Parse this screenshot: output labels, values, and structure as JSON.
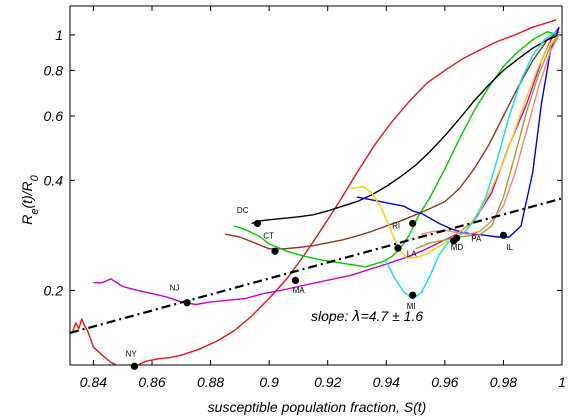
{
  "chart_data": {
    "type": "line",
    "xlabel": "susceptible population fraction, S(t)",
    "ylabel_parts": [
      "R",
      "e",
      "(t)/R",
      "0"
    ],
    "y_scale": "log",
    "xlim": [
      0.832,
      1.0
    ],
    "ylim": [
      0.125,
      1.2
    ],
    "x_ticks": [
      0.84,
      0.86,
      0.88,
      0.9,
      0.92,
      0.94,
      0.96,
      0.98,
      1.0
    ],
    "x_tick_labels": [
      "0.84",
      "0.86",
      "0.88",
      "0.9",
      "0.92",
      "0.94",
      "0.96",
      "0.98",
      "1"
    ],
    "y_ticks": [
      0.2,
      0.4,
      0.6,
      0.8,
      1.0
    ],
    "y_tick_labels": [
      "0.2",
      "0.4",
      "0.6",
      "0.8",
      "1"
    ],
    "annotation": {
      "prefix": "slope: ",
      "symbol": "λ",
      "value": "=4.7 ± 1.6"
    },
    "fit_line": {
      "x": [
        0.832,
        1.0
      ],
      "y": [
        0.153,
        0.357
      ],
      "color": "#000000"
    },
    "series": [
      {
        "color": "#e8141b",
        "x": [
          0.833,
          0.834,
          0.835,
          0.836,
          0.837,
          0.838,
          0.84,
          0.843,
          0.846,
          0.849,
          0.852,
          0.855,
          0.858,
          0.862,
          0.866,
          0.87,
          0.876,
          0.882,
          0.888,
          0.894,
          0.9,
          0.906,
          0.912,
          0.918,
          0.924,
          0.93,
          0.936,
          0.942,
          0.948,
          0.954,
          0.96,
          0.966,
          0.972,
          0.978,
          0.984,
          0.99,
          0.995,
          0.998
        ],
        "y": [
          0.155,
          0.163,
          0.157,
          0.167,
          0.16,
          0.155,
          0.14,
          0.133,
          0.127,
          0.124,
          0.124,
          0.125,
          0.128,
          0.13,
          0.131,
          0.133,
          0.138,
          0.145,
          0.155,
          0.17,
          0.19,
          0.215,
          0.25,
          0.295,
          0.35,
          0.42,
          0.5,
          0.58,
          0.66,
          0.74,
          0.8,
          0.86,
          0.91,
          0.96,
          1.0,
          1.05,
          1.08,
          1.1
        ]
      },
      {
        "color": "#cc00cc",
        "x": [
          0.84,
          0.843,
          0.846,
          0.85,
          0.855,
          0.86,
          0.865,
          0.87,
          0.875,
          0.88,
          0.886,
          0.892,
          0.898,
          0.904,
          0.91,
          0.916,
          0.922,
          0.928,
          0.934,
          0.94,
          0.946,
          0.952,
          0.958,
          0.964,
          0.97,
          0.976,
          0.982,
          0.988,
          0.993,
          0.997,
          0.999
        ],
        "y": [
          0.21,
          0.21,
          0.215,
          0.205,
          0.2,
          0.196,
          0.192,
          0.186,
          0.183,
          0.186,
          0.188,
          0.19,
          0.196,
          0.2,
          0.205,
          0.21,
          0.215,
          0.22,
          0.228,
          0.236,
          0.245,
          0.256,
          0.27,
          0.285,
          0.31,
          0.37,
          0.5,
          0.65,
          0.85,
          1.0,
          1.05
        ]
      },
      {
        "color": "#8b3a1a",
        "x": [
          0.885,
          0.89,
          0.895,
          0.9,
          0.905,
          0.91,
          0.915,
          0.92,
          0.925,
          0.93,
          0.935,
          0.94,
          0.945,
          0.95,
          0.955,
          0.96,
          0.965,
          0.97,
          0.975,
          0.98,
          0.985,
          0.99,
          0.995,
          0.999
        ],
        "y": [
          0.285,
          0.28,
          0.27,
          0.26,
          0.26,
          0.262,
          0.265,
          0.27,
          0.275,
          0.282,
          0.29,
          0.3,
          0.31,
          0.322,
          0.335,
          0.35,
          0.38,
          0.43,
          0.5,
          0.6,
          0.72,
          0.85,
          0.97,
          1.02
        ]
      },
      {
        "color": "#00cc00",
        "x": [
          0.888,
          0.891,
          0.894,
          0.897,
          0.9,
          0.903,
          0.906,
          0.909,
          0.912,
          0.915,
          0.918,
          0.921,
          0.924,
          0.927,
          0.93,
          0.933,
          0.936,
          0.939,
          0.942,
          0.945,
          0.948,
          0.951,
          0.955,
          0.96,
          0.965,
          0.97,
          0.975,
          0.98,
          0.985,
          0.99,
          0.995,
          0.999
        ],
        "y": [
          0.3,
          0.295,
          0.288,
          0.28,
          0.268,
          0.262,
          0.256,
          0.252,
          0.248,
          0.245,
          0.242,
          0.24,
          0.238,
          0.236,
          0.234,
          0.232,
          0.236,
          0.24,
          0.248,
          0.262,
          0.285,
          0.32,
          0.36,
          0.43,
          0.52,
          0.62,
          0.72,
          0.82,
          0.9,
          0.97,
          1.02,
          1.0
        ]
      },
      {
        "color": "#000000",
        "x": [
          0.894,
          0.897,
          0.9,
          0.905,
          0.91,
          0.915,
          0.92,
          0.925,
          0.93,
          0.935,
          0.94,
          0.945,
          0.95,
          0.955,
          0.96,
          0.965,
          0.97,
          0.975,
          0.98,
          0.985,
          0.99,
          0.995,
          0.999
        ],
        "y": [
          0.305,
          0.31,
          0.312,
          0.315,
          0.318,
          0.322,
          0.33,
          0.34,
          0.35,
          0.365,
          0.385,
          0.41,
          0.44,
          0.48,
          0.53,
          0.59,
          0.66,
          0.73,
          0.8,
          0.86,
          0.92,
          0.97,
          1.0
        ]
      },
      {
        "color": "#0000dd",
        "x": [
          0.93,
          0.934,
          0.938,
          0.942,
          0.946,
          0.949,
          0.952,
          0.955,
          0.958,
          0.962,
          0.966,
          0.97,
          0.974,
          0.978,
          0.982,
          0.986,
          0.99,
          0.993,
          0.996,
          0.999
        ],
        "y": [
          0.36,
          0.355,
          0.35,
          0.345,
          0.34,
          0.33,
          0.325,
          0.315,
          0.305,
          0.295,
          0.288,
          0.285,
          0.283,
          0.28,
          0.28,
          0.3,
          0.42,
          0.65,
          0.9,
          1.05
        ]
      },
      {
        "color": "#ffcc00",
        "x": [
          0.928,
          0.932,
          0.935,
          0.938,
          0.941,
          0.944,
          0.947,
          0.95,
          0.953,
          0.956,
          0.96,
          0.964,
          0.968,
          0.972,
          0.976,
          0.98,
          0.984,
          0.988,
          0.992,
          0.996,
          0.999
        ],
        "y": [
          0.38,
          0.385,
          0.37,
          0.34,
          0.3,
          0.262,
          0.245,
          0.246,
          0.25,
          0.258,
          0.27,
          0.285,
          0.3,
          0.33,
          0.38,
          0.45,
          0.55,
          0.68,
          0.82,
          0.95,
          1.0
        ]
      },
      {
        "color": "#00e5ee",
        "x": [
          0.94,
          0.943,
          0.946,
          0.949,
          0.952,
          0.955,
          0.958,
          0.961,
          0.964,
          0.967,
          0.97,
          0.974,
          0.978,
          0.982,
          0.986,
          0.99,
          0.994,
          0.998
        ],
        "y": [
          0.24,
          0.215,
          0.198,
          0.19,
          0.197,
          0.22,
          0.25,
          0.27,
          0.28,
          0.29,
          0.31,
          0.36,
          0.46,
          0.6,
          0.75,
          0.88,
          0.97,
          1.02
        ]
      },
      {
        "color": "#9aa030",
        "x": [
          0.95,
          0.955,
          0.96,
          0.964,
          0.968,
          0.972,
          0.976,
          0.98,
          0.984,
          0.988,
          0.992,
          0.996,
          0.999
        ],
        "y": [
          0.26,
          0.27,
          0.275,
          0.28,
          0.282,
          0.284,
          0.3,
          0.36,
          0.47,
          0.62,
          0.78,
          0.93,
          1.0
        ]
      },
      {
        "color": "#ff8080",
        "x": [
          0.952,
          0.956,
          0.96,
          0.964,
          0.968,
          0.972,
          0.976,
          0.98,
          0.984,
          0.988,
          0.992,
          0.996,
          0.999
        ],
        "y": [
          0.285,
          0.29,
          0.292,
          0.288,
          0.285,
          0.29,
          0.31,
          0.34,
          0.42,
          0.55,
          0.72,
          0.9,
          1.0
        ]
      }
    ],
    "points": [
      {
        "label": "NY",
        "x": 0.854,
        "y": 0.124,
        "lx": 0.851,
        "ly": 0.132
      },
      {
        "label": "NJ",
        "x": 0.872,
        "y": 0.185,
        "lx": 0.866,
        "ly": 0.2
      },
      {
        "label": "MA",
        "x": 0.909,
        "y": 0.213,
        "lx": 0.908,
        "ly": 0.197
      },
      {
        "label": "CT",
        "x": 0.902,
        "y": 0.256,
        "lx": 0.898,
        "ly": 0.277
      },
      {
        "label": "DC",
        "x": 0.896,
        "y": 0.305,
        "lx": 0.889,
        "ly": 0.326
      },
      {
        "label": "MI",
        "x": 0.949,
        "y": 0.194,
        "lx": 0.947,
        "ly": 0.178
      },
      {
        "label": "LA",
        "x": 0.944,
        "y": 0.261,
        "lx": 0.947,
        "ly": 0.248
      },
      {
        "label": "RI",
        "x": 0.949,
        "y": 0.305,
        "lx": 0.942,
        "ly": 0.295
      },
      {
        "label": "MD",
        "x": 0.963,
        "y": 0.273,
        "lx": 0.962,
        "ly": 0.258
      },
      {
        "label": "PA",
        "x": 0.964,
        "y": 0.278,
        "lx": 0.969,
        "ly": 0.272
      },
      {
        "label": "IL",
        "x": 0.98,
        "y": 0.283,
        "lx": 0.981,
        "ly": 0.258
      }
    ]
  }
}
